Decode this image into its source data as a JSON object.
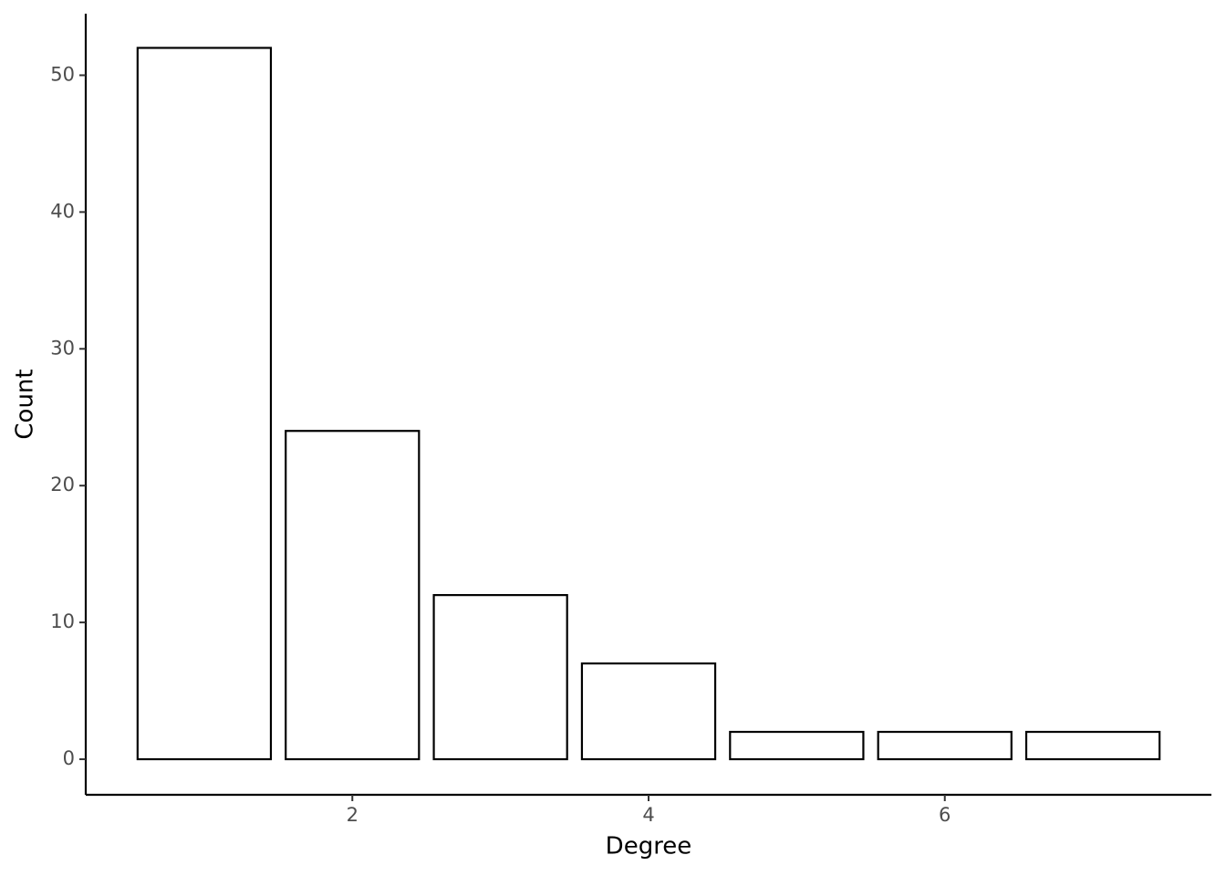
{
  "chart_data": {
    "type": "bar",
    "x_label": "Degree",
    "y_label": "Count",
    "x": [
      1,
      2,
      3,
      4,
      5,
      6,
      7
    ],
    "values": [
      52,
      24,
      12,
      7,
      2,
      2,
      2
    ],
    "color": "#ffffff",
    "edge_color": "#000000",
    "xlim": [
      0.2,
      7.8
    ],
    "xticks": [
      2,
      4,
      6
    ],
    "ylim": [
      -2.6,
      54.5
    ],
    "yticks": [
      0,
      10,
      20,
      30,
      40,
      50
    ],
    "grid": false
  }
}
